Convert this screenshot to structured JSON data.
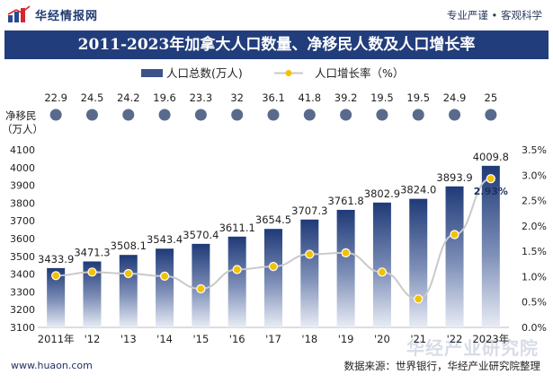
{
  "brand": {
    "name": "华经情报网",
    "slogan": "专业严谨 • 客观科学"
  },
  "title": "2011-2023年加拿大人口数量、净移民人数及人口增长率",
  "legend": {
    "series1": "人口总数(万人)",
    "series2": "人口增长率（%）"
  },
  "colors": {
    "header": "#223d7b",
    "bar_top": "#1f3a78",
    "bar_bottom": "#e8ecf5",
    "dot": "#5a6a8c",
    "line": "#c9c9c9",
    "marker": "#f2c200"
  },
  "chart_data": {
    "type": "bar",
    "categories": [
      "2011年",
      "'12",
      "'13",
      "'14",
      "'15",
      "'16",
      "'17",
      "'18",
      "'19",
      "'20",
      "'21",
      "'22",
      "2023年"
    ],
    "series": [
      {
        "name": "人口总数(万人)",
        "values": [
          3433.9,
          3471.3,
          3508.1,
          3543.4,
          3570.4,
          3611.1,
          3654.5,
          3707.3,
          3761.8,
          3802.9,
          3824.0,
          3893.9,
          4009.8
        ]
      },
      {
        "name": "人口增长率（%）",
        "values": [
          1.02,
          1.09,
          1.06,
          1.01,
          0.76,
          1.14,
          1.2,
          1.44,
          1.47,
          1.09,
          0.56,
          1.83,
          2.93
        ]
      }
    ],
    "net_migration": {
      "label_line1": "净移民",
      "label_line2": "（万人）",
      "values": [
        22.9,
        24.5,
        24.2,
        19.6,
        23.3,
        32,
        36.1,
        41.8,
        39.2,
        19.5,
        19.5,
        24.9,
        25
      ]
    },
    "data_labels": [
      "3433.9",
      "3471.3",
      "3508.1",
      "3543.4",
      "3570.4",
      "3611.1",
      "3654.5",
      "3707.3",
      "3761.8",
      "3802.9",
      "3824.0",
      "3893.9",
      "4009.8"
    ],
    "rate_labels": {
      "last": "2.93%"
    },
    "ylim": [
      3100,
      4100
    ],
    "yticks": [
      3100,
      3200,
      3300,
      3400,
      3500,
      3600,
      3700,
      3800,
      3900,
      4000,
      4100
    ],
    "y2lim": [
      0,
      3.5
    ],
    "y2ticks": [
      "0.0%",
      "0.5%",
      "1.0%",
      "1.5%",
      "2.0%",
      "2.5%",
      "3.0%",
      "3.5%"
    ],
    "legend_position": "top-center"
  },
  "footer": {
    "url": "www.huaon.com",
    "source": "数据来源：世界银行，华经产业研究院整理"
  },
  "watermark": "华经产业研究院"
}
